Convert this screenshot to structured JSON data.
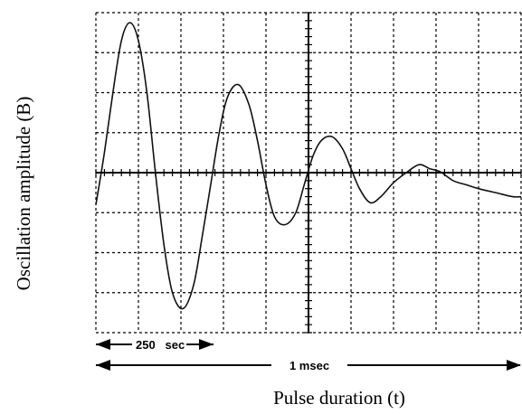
{
  "chart_data": {
    "type": "line",
    "title": "",
    "xlabel": "Pulse duration (t)",
    "ylabel": "Oscillation amplitude (B)",
    "grid": true,
    "grid_style": "dashed",
    "grid_divisions": {
      "x": 10,
      "y": 8
    },
    "xlim": [
      0,
      1000
    ],
    "ylim": [
      -4,
      4
    ],
    "x_unit": "µs",
    "annotations": [
      {
        "label": "250   sec",
        "from": 0,
        "to": 250
      },
      {
        "label": "1 msec",
        "from": 0,
        "to": 1000
      }
    ],
    "series": [
      {
        "values_description": "damped oscillation trace",
        "points": [
          [
            0,
            -0.8
          ],
          [
            20,
            0.5
          ],
          [
            40,
            2.0
          ],
          [
            60,
            3.3
          ],
          [
            80,
            3.75
          ],
          [
            100,
            3.3
          ],
          [
            120,
            2.0
          ],
          [
            140,
            0.0
          ],
          [
            160,
            -1.8
          ],
          [
            180,
            -3.0
          ],
          [
            205,
            -3.4
          ],
          [
            230,
            -2.8
          ],
          [
            250,
            -1.6
          ],
          [
            270,
            -0.3
          ],
          [
            290,
            1.0
          ],
          [
            310,
            1.9
          ],
          [
            335,
            2.2
          ],
          [
            360,
            1.7
          ],
          [
            380,
            0.8
          ],
          [
            400,
            -0.3
          ],
          [
            420,
            -1.1
          ],
          [
            445,
            -1.3
          ],
          [
            470,
            -1.0
          ],
          [
            490,
            -0.3
          ],
          [
            510,
            0.4
          ],
          [
            530,
            0.8
          ],
          [
            555,
            0.9
          ],
          [
            580,
            0.6
          ],
          [
            600,
            0.1
          ],
          [
            620,
            -0.4
          ],
          [
            645,
            -0.75
          ],
          [
            670,
            -0.6
          ],
          [
            700,
            -0.25
          ],
          [
            730,
            0.0
          ],
          [
            760,
            0.2
          ],
          [
            785,
            0.1
          ],
          [
            810,
            0.02
          ],
          [
            840,
            -0.2
          ],
          [
            870,
            -0.3
          ],
          [
            900,
            -0.4
          ],
          [
            940,
            -0.5
          ],
          [
            980,
            -0.6
          ],
          [
            1000,
            -0.6
          ]
        ]
      }
    ]
  },
  "style": {
    "line_color": "#111111",
    "grid_color": "#000000",
    "axis_color": "#000000"
  }
}
